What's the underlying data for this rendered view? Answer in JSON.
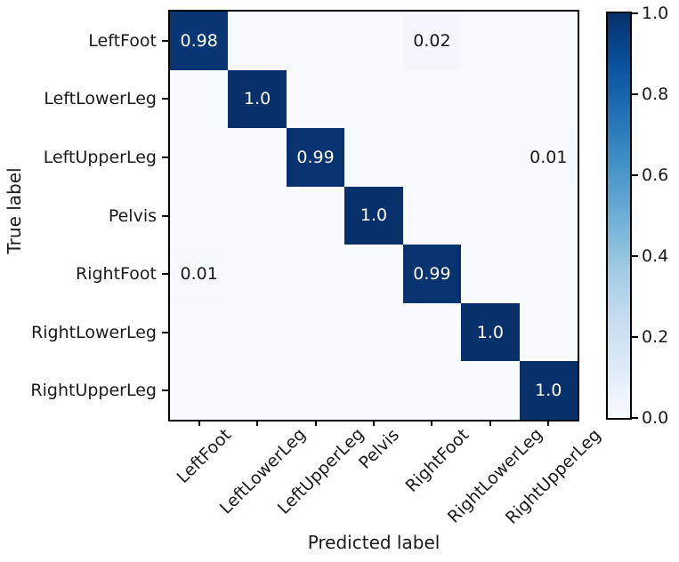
{
  "chart_data": {
    "type": "heatmap",
    "title": "",
    "xlabel": "Predicted label",
    "ylabel": "True label",
    "x_categories": [
      "LeftFoot",
      "LeftLowerLeg",
      "LeftUpperLeg",
      "Pelvis",
      "RightFoot",
      "RightLowerLeg",
      "RightUpperLeg"
    ],
    "y_categories": [
      "LeftFoot",
      "LeftLowerLeg",
      "LeftUpperLeg",
      "Pelvis",
      "RightFoot",
      "RightLowerLeg",
      "RightUpperLeg"
    ],
    "matrix_note": "rows = true labels top-to-bottom, cols = predicted labels left-to-right",
    "matrix": [
      [
        0.98,
        0,
        0,
        0,
        0.02,
        0,
        0
      ],
      [
        0,
        1.0,
        0,
        0,
        0,
        0,
        0
      ],
      [
        0,
        0,
        0.99,
        0,
        0,
        0,
        0.01
      ],
      [
        0,
        0,
        0,
        1.0,
        0,
        0,
        0
      ],
      [
        0.01,
        0,
        0,
        0,
        0.99,
        0,
        0
      ],
      [
        0,
        0,
        0,
        0,
        0,
        1.0,
        0
      ],
      [
        0,
        0,
        0,
        0,
        0,
        0,
        1.0
      ]
    ],
    "cell_labels": [
      [
        "0.98",
        "",
        "",
        "",
        "0.02",
        "",
        ""
      ],
      [
        "",
        "1.0",
        "",
        "",
        "",
        "",
        ""
      ],
      [
        "",
        "",
        "0.99",
        "",
        "",
        "",
        "0.01"
      ],
      [
        "",
        "",
        "",
        "1.0",
        "",
        "",
        ""
      ],
      [
        "0.01",
        "",
        "",
        "",
        "0.99",
        "",
        ""
      ],
      [
        "",
        "",
        "",
        "",
        "",
        "1.0",
        ""
      ],
      [
        "",
        "",
        "",
        "",
        "",
        "",
        "1.0"
      ]
    ],
    "value_range": [
      0,
      1
    ],
    "colormap": "Blues",
    "colormap_colors": [
      "#f7fbff",
      "#deebf7",
      "#c6dbef",
      "#9ecae1",
      "#6baed6",
      "#4292c6",
      "#2171b5",
      "#08519c",
      "#08306b"
    ],
    "grid": false,
    "colorbar": {
      "location": "right",
      "min": 0.0,
      "max": 1.0,
      "ticks": [
        {
          "value": 0.0,
          "label": "0.0"
        },
        {
          "value": 0.2,
          "label": "0.2"
        },
        {
          "value": 0.4,
          "label": "0.4"
        },
        {
          "value": 0.6,
          "label": "0.6"
        },
        {
          "value": 0.8,
          "label": "0.8"
        },
        {
          "value": 1.0,
          "label": "1.0"
        }
      ]
    }
  },
  "colors": {
    "cell_text_on_dark": "#ffffff",
    "cell_text_on_light": "#1a1a1a",
    "axis": "#000000",
    "background": "#ffffff"
  }
}
